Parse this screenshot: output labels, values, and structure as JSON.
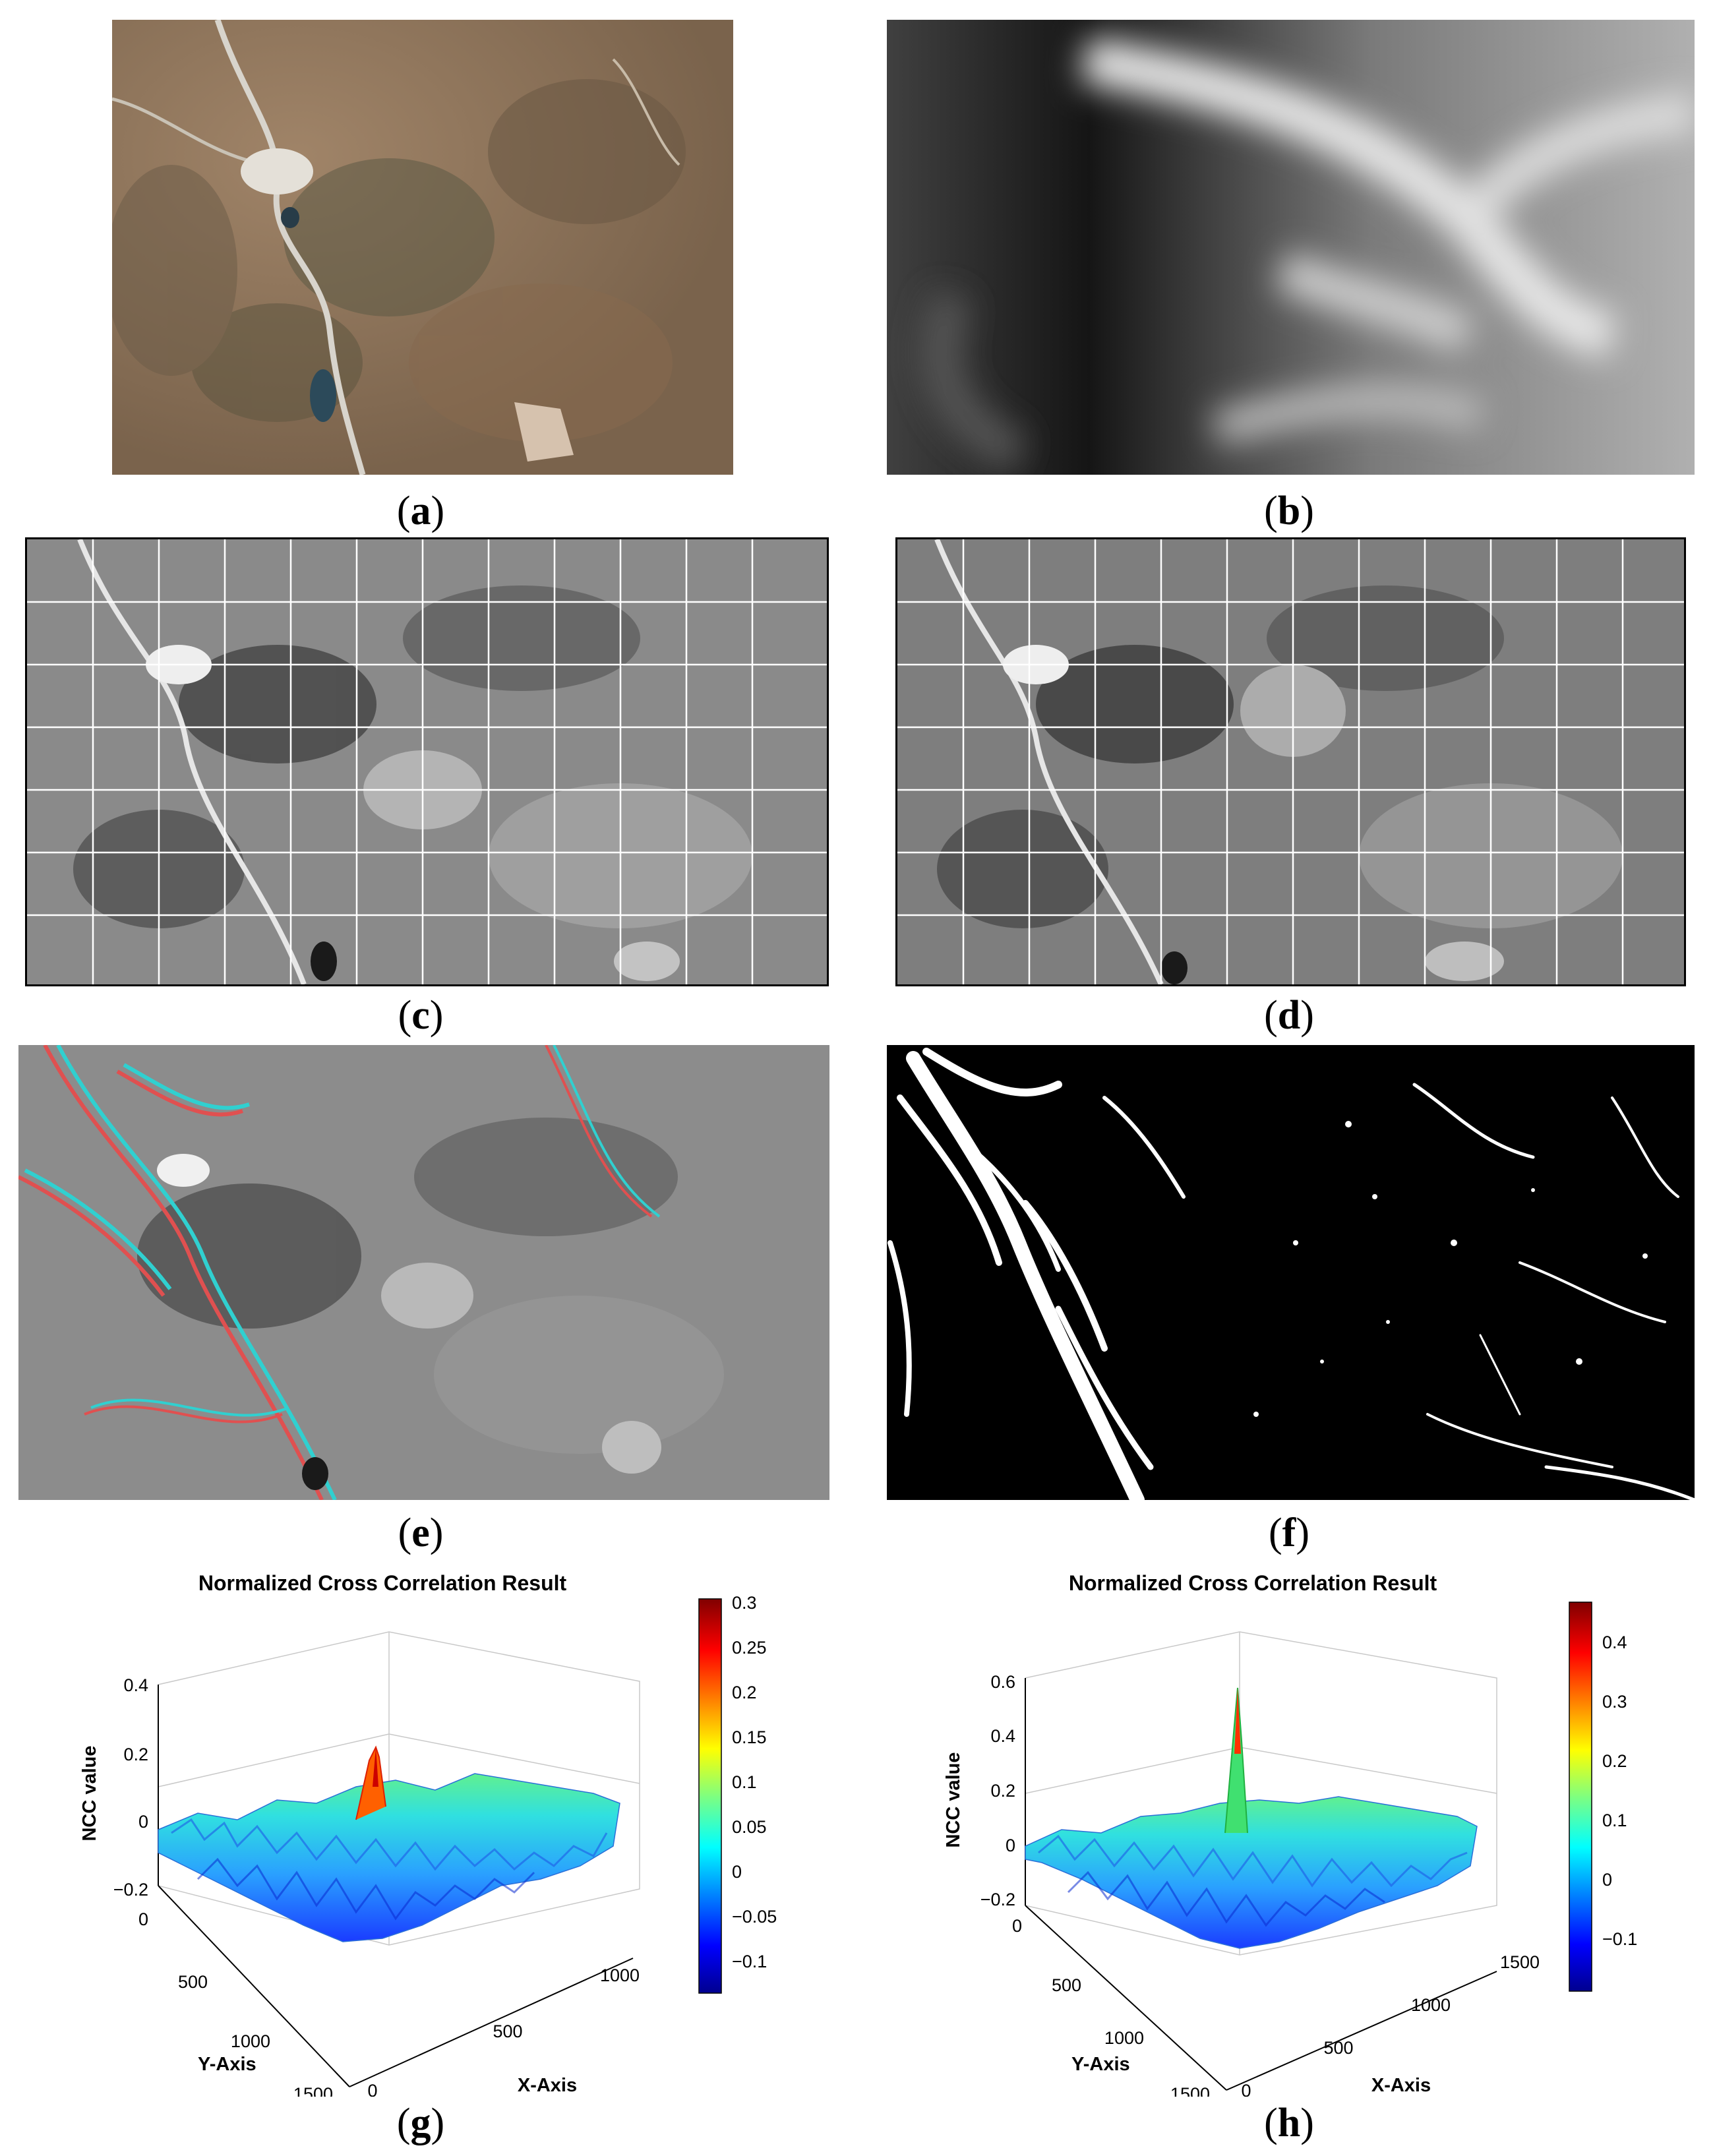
{
  "captions": {
    "a": "a",
    "b": "b",
    "c": "c",
    "d": "d",
    "e": "e",
    "f": "f",
    "g": "g",
    "h": "h"
  },
  "panels": {
    "a": {
      "kind": "satellite-rgb-photo",
      "colors": [
        "#8a7058",
        "#6d5a45",
        "#a88f75",
        "#4f4a3c"
      ]
    },
    "b": {
      "kind": "grayscale-dem"
    },
    "c": {
      "kind": "grayscale-photo-with-white-grid"
    },
    "d": {
      "kind": "grayscale-photo-with-white-grid"
    },
    "e": {
      "kind": "red-cyan-anaglyph",
      "colors": [
        "#e05050",
        "#30d0d0"
      ]
    },
    "f": {
      "kind": "binary-mask",
      "colors": [
        "#000000",
        "#ffffff"
      ]
    }
  },
  "chart_data": [
    {
      "type": "surface3d",
      "title": "Normalized Cross Correlation Result",
      "zlabel": "NCC value",
      "xlabel": "X-Axis",
      "ylabel": "Y-Axis",
      "z_ticks": [
        "0.4",
        "0.2",
        "0",
        "−0.2"
      ],
      "y_ticks": [
        "0",
        "500",
        "1000",
        "1500"
      ],
      "x_ticks": [
        "0",
        "500",
        "1000"
      ],
      "zlim": [
        -0.2,
        0.4
      ],
      "peak_value": 0.3,
      "colorbar": {
        "min": -0.14,
        "max": 0.3,
        "ticks": [
          "0.3",
          "0.25",
          "0.2",
          "0.15",
          "0.1",
          "0.05",
          "0",
          "−0.05",
          "−0.1"
        ]
      },
      "colormap": "jet"
    },
    {
      "type": "surface3d",
      "title": "Normalized Cross Correlation Result",
      "zlabel": "NCC value",
      "xlabel": "X-Axis",
      "ylabel": "Y-Axis",
      "z_ticks": [
        "0.6",
        "0.4",
        "0.2",
        "0",
        "−0.2"
      ],
      "y_ticks": [
        "0",
        "500",
        "1000",
        "1500"
      ],
      "x_ticks": [
        "0",
        "500",
        "1000",
        "1500"
      ],
      "zlim": [
        -0.2,
        0.6
      ],
      "peak_value": 0.48,
      "colorbar": {
        "min": -0.17,
        "max": 0.48,
        "ticks": [
          "0.4",
          "0.3",
          "0.2",
          "0.1",
          "0",
          "−0.1"
        ]
      },
      "colormap": "jet"
    }
  ]
}
